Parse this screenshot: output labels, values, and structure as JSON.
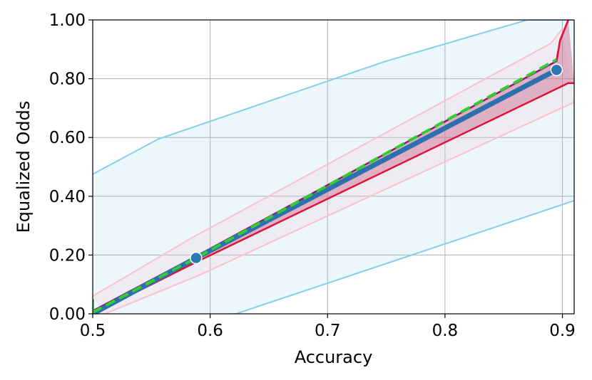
{
  "chart_data": {
    "type": "line",
    "title": "",
    "xlabel": "Accuracy",
    "ylabel": "Equalized Odds",
    "xlim": [
      0.5,
      0.91
    ],
    "ylim": [
      0.0,
      1.0
    ],
    "grid": true,
    "x_ticks": [
      0.5,
      0.6,
      0.7,
      0.8,
      0.9
    ],
    "x_tick_labels": [
      "0.5",
      "0.6",
      "0.7",
      "0.8",
      "0.9"
    ],
    "y_ticks": [
      0.0,
      0.2,
      0.4,
      0.6,
      0.8,
      1.0
    ],
    "y_tick_labels": [
      "0.00",
      "0.20",
      "0.40",
      "0.60",
      "0.80",
      "1.00"
    ],
    "colors": {
      "outer_band_fill": "#87ceeb",
      "outer_band_edge": "#87ceeb",
      "pink_band_fill": "#ffc0cb",
      "pink_band_edge": "#ffc0cb",
      "inner_band_fill": "#c8557f",
      "inner_band_edge": "#dc143c",
      "upper_edge": "#8b1a6b",
      "main_line": "#2e6fad",
      "dashed_line": "#32cd32",
      "points": "#2b78b5"
    },
    "bands": [
      {
        "id": "outer",
        "upper": [
          [
            0.5,
            0.475
          ],
          [
            0.556,
            0.595
          ],
          [
            0.75,
            0.86
          ],
          [
            0.87,
            1.0
          ],
          [
            0.91,
            1.0
          ]
        ],
        "lower": [
          [
            0.5,
            -0.02
          ],
          [
            0.622,
            0.0
          ],
          [
            0.91,
            0.385
          ]
        ],
        "opacity": 0.16
      },
      {
        "id": "pink",
        "upper": [
          [
            0.5,
            0.06
          ],
          [
            0.585,
            0.26
          ],
          [
            0.89,
            0.92
          ],
          [
            0.9,
            0.97
          ]
        ],
        "lower": [
          [
            0.51,
            0.0
          ],
          [
            0.59,
            0.13
          ],
          [
            0.91,
            0.72
          ]
        ],
        "opacity": 0.2
      },
      {
        "id": "inner",
        "upper": [
          [
            0.5,
            0.01
          ],
          [
            0.59,
            0.2
          ],
          [
            0.895,
            0.86
          ],
          [
            0.898,
            0.93
          ],
          [
            0.905,
            1.0
          ]
        ],
        "lower": [
          [
            0.5,
            0.0
          ],
          [
            0.59,
            0.18
          ],
          [
            0.905,
            0.785
          ],
          [
            0.91,
            0.785
          ]
        ],
        "opacity": 0.4
      }
    ],
    "series": [
      {
        "style": "thick",
        "x": [
          0.5,
          0.588,
          0.895
        ],
        "y": [
          0.0,
          0.19,
          0.83
        ]
      },
      {
        "style": "dashed",
        "x": [
          0.5,
          0.588,
          0.895
        ],
        "y": [
          0.005,
          0.19,
          0.865
        ]
      }
    ],
    "points": {
      "x": [
        0.588,
        0.895
      ],
      "y": [
        0.19,
        0.83
      ]
    }
  }
}
